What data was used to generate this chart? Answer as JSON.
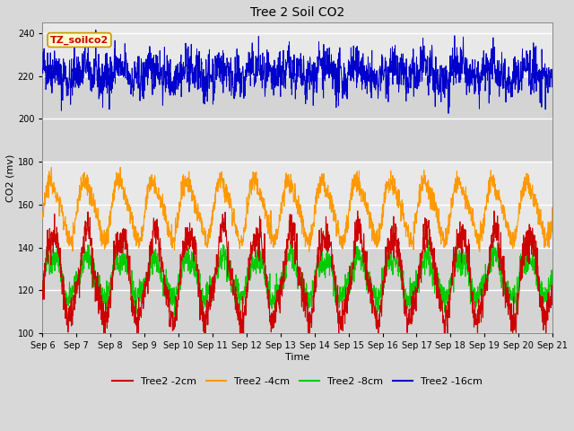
{
  "title": "Tree 2 Soil CO2",
  "xlabel": "Time",
  "ylabel": "CO2 (mv)",
  "ylim": [
    100,
    245
  ],
  "yticks": [
    100,
    120,
    140,
    160,
    180,
    200,
    220,
    240
  ],
  "x_labels": [
    "Sep 6",
    "Sep 7",
    "Sep 8",
    "Sep 9",
    "Sep 10",
    "Sep 11",
    "Sep 12",
    "Sep 13",
    "Sep 14",
    "Sep 15",
    "Sep 16",
    "Sep 17",
    "Sep 18",
    "Sep 19",
    "Sep 20",
    "Sep 21"
  ],
  "series": {
    "Tree2 -2cm": {
      "color": "#cc0000"
    },
    "Tree2 -4cm": {
      "color": "#ff9900"
    },
    "Tree2 -8cm": {
      "color": "#00cc00"
    },
    "Tree2 -16cm": {
      "color": "#0000cc"
    }
  },
  "annotation_text": "TZ_soilco2",
  "annotation_color": "#cc0000",
  "annotation_bg": "#ffffcc",
  "annotation_border": "#cc9900",
  "fig_bg": "#d8d8d8",
  "plot_bg": "#e8e8e8",
  "band1_color": "#e8e8e8",
  "band2_color": "#d4d4d4",
  "n_points": 2000
}
